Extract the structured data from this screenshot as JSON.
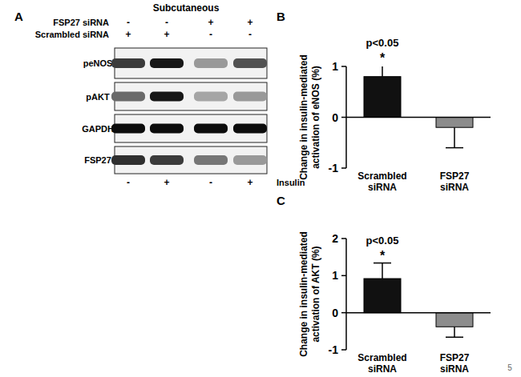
{
  "blot": {
    "panel": "A",
    "title": "Subcutaneous",
    "conditions": [
      {
        "label": "FSP27 siRNA",
        "values": [
          "-",
          "-",
          "+",
          "+"
        ]
      },
      {
        "label": "Scrambled siRNA",
        "values": [
          "+",
          "+",
          "-",
          "-"
        ]
      }
    ],
    "treatment": {
      "label": "Insulin",
      "values": [
        "-",
        "+",
        "-",
        "+"
      ]
    },
    "rows": [
      {
        "label": "peNOS",
        "intensity": [
          0.75,
          0.9,
          0.35,
          0.65
        ]
      },
      {
        "label": "pAKT",
        "intensity": [
          0.55,
          0.9,
          0.3,
          0.35
        ]
      },
      {
        "label": "GAPDH",
        "intensity": [
          0.95,
          0.95,
          0.95,
          0.95
        ]
      },
      {
        "label": "FSP27",
        "intensity": [
          0.8,
          0.75,
          0.5,
          0.35
        ]
      }
    ]
  },
  "chart_data": [
    {
      "type": "bar",
      "title": "B",
      "categories": [
        "Scrambled siRNA",
        "FSP27 siRNA"
      ],
      "values": [
        0.8,
        -0.2
      ],
      "errors": [
        0.22,
        0.4
      ],
      "colors": [
        "#111111",
        "#8c8c8c"
      ],
      "y_label": "Change in insulin-mediated activation of eNOS (%)",
      "ylim": [
        -1,
        1
      ],
      "yticks": [
        -1,
        0,
        1
      ],
      "annotations": [
        {
          "text": "p<0.05"
        },
        {
          "text": "*"
        }
      ]
    },
    {
      "type": "bar",
      "title": "C",
      "categories": [
        "Scrambled siRNA",
        "FSP27 siRNA"
      ],
      "values": [
        0.92,
        -0.38
      ],
      "errors": [
        0.42,
        0.28
      ],
      "colors": [
        "#111111",
        "#8c8c8c"
      ],
      "y_label": "Change in insulin-mediated activation of AKT (%)",
      "ylim": [
        -1,
        2
      ],
      "yticks": [
        -1,
        0,
        1,
        2
      ],
      "annotations": [
        {
          "text": "p<0.05"
        },
        {
          "text": "*"
        }
      ]
    }
  ],
  "page_number": "5"
}
